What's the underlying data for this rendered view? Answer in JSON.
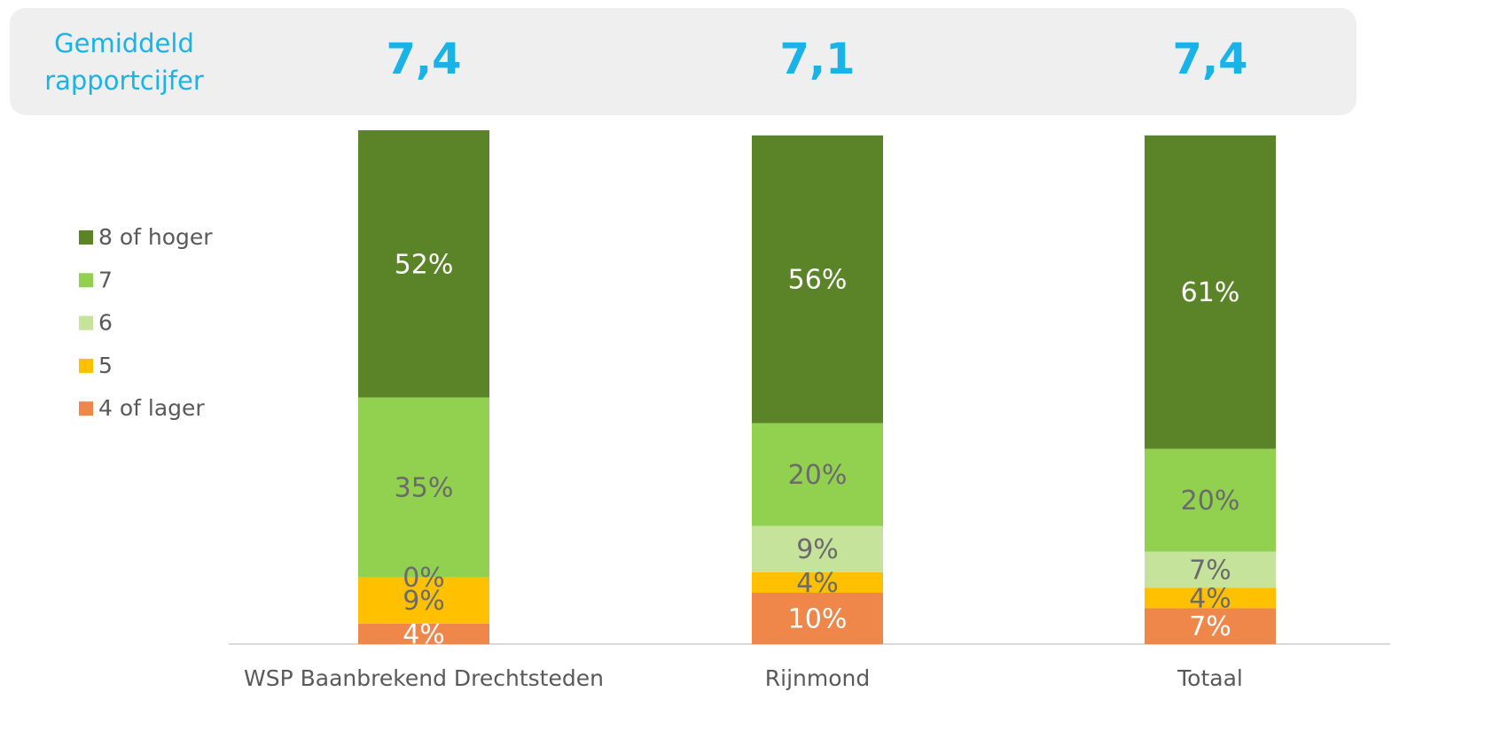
{
  "chart_data": {
    "type": "stacked_bar",
    "header": {
      "label": "Gemiddeld rapportcijfer",
      "values": [
        7.4,
        7.1,
        7.4
      ],
      "value_labels": [
        "7,4",
        "7,1",
        "7,4"
      ],
      "color": "#1ab3e8"
    },
    "categories": [
      "WSP Baanbrekend Drechtsteden",
      "Rijnmond",
      "Totaal"
    ],
    "series": [
      {
        "name": "4 of lager",
        "color": "#f0874a",
        "values": [
          4,
          10,
          7
        ],
        "value_labels": [
          "4%",
          "10%",
          "7%"
        ]
      },
      {
        "name": "5",
        "color": "#ffc000",
        "values": [
          9,
          4,
          4
        ],
        "value_labels": [
          "9%",
          "4%",
          "4%"
        ]
      },
      {
        "name": "6",
        "color": "#c5e39a",
        "values": [
          0,
          9,
          7
        ],
        "value_labels": [
          "0%",
          "9%",
          "7%"
        ]
      },
      {
        "name": "7",
        "color": "#92d050",
        "values": [
          35,
          20,
          20
        ],
        "value_labels": [
          "35%",
          "20%",
          "20%"
        ]
      },
      {
        "name": "8 of hoger",
        "color": "#5a8427",
        "values": [
          52,
          56,
          61
        ],
        "value_labels": [
          "52%",
          "56%",
          "61%"
        ]
      }
    ],
    "ylim": [
      0,
      100
    ],
    "legend": "left"
  }
}
